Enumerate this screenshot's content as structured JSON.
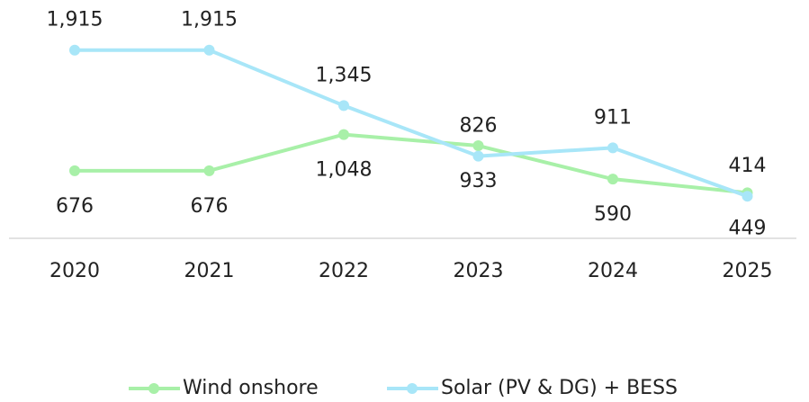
{
  "chart_data": {
    "type": "line",
    "categories": [
      "2020",
      "2021",
      "2022",
      "2023",
      "2024",
      "2025"
    ],
    "series": [
      {
        "name": "Wind onshore",
        "color": "#a8f0a8",
        "values": [
          676,
          676,
          1048,
          933,
          590,
          449
        ],
        "value_labels": [
          "676",
          "676",
          "1,048",
          "933",
          "590",
          "449"
        ]
      },
      {
        "name": "Solar (PV & DG) + BESS",
        "color": "#a8e6f8",
        "values": [
          1915,
          1915,
          1345,
          826,
          911,
          414
        ],
        "value_labels": [
          "1,915",
          "1,915",
          "1,345",
          "826",
          "911",
          "414"
        ]
      }
    ],
    "ylim": [
      0,
      2430
    ],
    "legend": "bottom"
  }
}
